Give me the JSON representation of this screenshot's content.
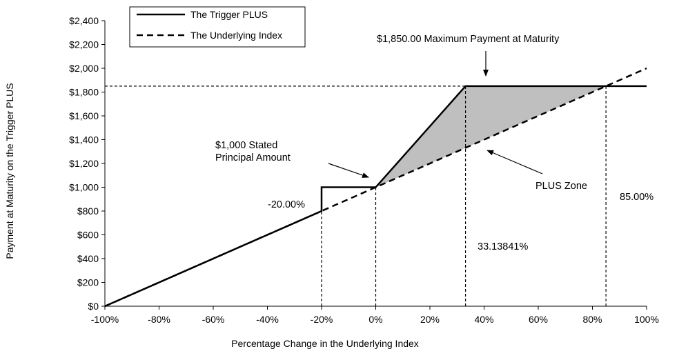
{
  "chart_data": {
    "type": "line",
    "xlabel": "Percentage Change in the Underlying Index",
    "ylabel": "Payment at Maturity on the Trigger PLUS",
    "xlim": [
      -100,
      100
    ],
    "ylim": [
      0,
      2400
    ],
    "x_ticks": [
      -100,
      -80,
      -60,
      -40,
      -20,
      0,
      20,
      40,
      60,
      80,
      100
    ],
    "x_tick_labels": [
      "-100%",
      "-80%",
      "-60%",
      "-40%",
      "-20%",
      "0%",
      "20%",
      "40%",
      "60%",
      "80%",
      "100%"
    ],
    "y_ticks": [
      0,
      200,
      400,
      600,
      800,
      1000,
      1200,
      1400,
      1600,
      1800,
      2000,
      2200,
      2400
    ],
    "y_tick_labels": [
      "$0",
      "$200",
      "$400",
      "$600",
      "$800",
      "$1,000",
      "$1,200",
      "$1,400",
      "$1,600",
      "$1,800",
      "$2,000",
      "$2,200",
      "$2,400"
    ],
    "grid": false,
    "legend_position": "top-left",
    "series": [
      {
        "name": "The Trigger PLUS",
        "style": "solid",
        "color": "#000000",
        "x": [
          -100,
          -20,
          -20,
          0,
          33.13841,
          100
        ],
        "y": [
          0,
          800,
          1000,
          1000,
          1850,
          1850
        ]
      },
      {
        "name": "The Underlying Index",
        "style": "dashed",
        "color": "#000000",
        "x": [
          -100,
          100
        ],
        "y": [
          0,
          2000
        ]
      }
    ],
    "shaded_region": {
      "color": "#bfbfbf",
      "x": [
        0,
        33.13841,
        85
      ],
      "top": [
        1000,
        1850,
        1850
      ],
      "bottom": [
        1000,
        1331.3841,
        1850
      ]
    },
    "reference_lines": [
      {
        "orientation": "vertical",
        "x": -20,
        "y_to": 1000
      },
      {
        "orientation": "vertical",
        "x": 0,
        "y_to": 1000
      },
      {
        "orientation": "vertical",
        "x": 33.13841,
        "y_to": 1850
      },
      {
        "orientation": "vertical",
        "x": 85,
        "y_to": 1850
      },
      {
        "orientation": "horizontal",
        "y": 1850,
        "x_from": -100,
        "x_to": 33.13841
      }
    ],
    "annotations": {
      "max_payment": "$1,850.00 Maximum  Payment at Maturity",
      "stated_principal_line1": "$1,000 Stated",
      "stated_principal_line2": "Principal Amount",
      "plus_zone": "PLUS Zone",
      "trigger_level": "-20.00%",
      "cap_level": "33.13841%",
      "max_level": "85.00%"
    }
  }
}
